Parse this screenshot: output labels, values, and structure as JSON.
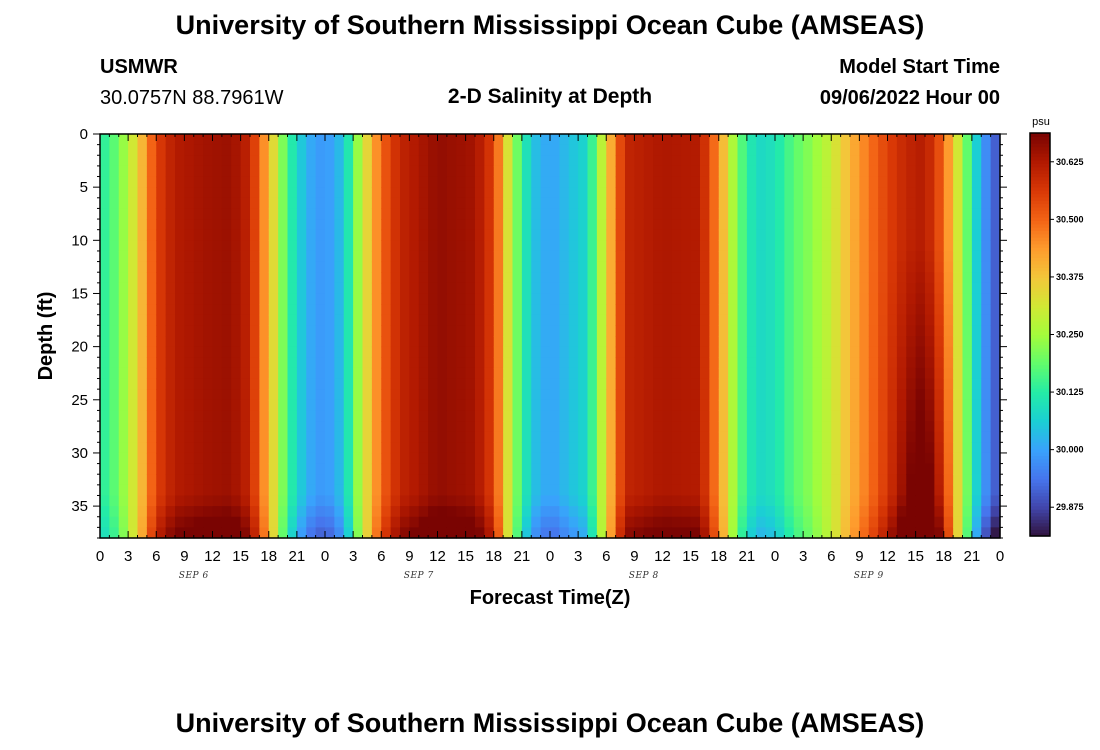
{
  "header": {
    "title_top": "University of Southern Mississippi Ocean Cube (AMSEAS)",
    "station": "USMWR",
    "coords": "30.0757N  88.7961W",
    "subtitle": "2-D Salinity at Depth",
    "start_label": "Model Start Time",
    "start_value": "09/06/2022 Hour 00",
    "title_bottom": "University of Southern Mississippi Ocean Cube (AMSEAS)"
  },
  "colors": {
    "palette": [
      "#30123b",
      "#4145ab",
      "#4675ed",
      "#39a2fc",
      "#1bcfd4",
      "#24eca6",
      "#61fc6c",
      "#a4fc3b",
      "#d1e834",
      "#f3c63a",
      "#fe9b2d",
      "#f36315",
      "#d93806",
      "#b11901",
      "#7a0402"
    ]
  },
  "chart_data": {
    "type": "heatmap",
    "title": "2-D Salinity at Depth",
    "xlabel": "Forecast Time(Z)",
    "ylabel": "Depth (ft)",
    "x_range_hours": [
      0,
      96
    ],
    "x_tick_step_hours": 3,
    "x_tick_labels": [
      "0",
      "3",
      "6",
      "9",
      "12",
      "15",
      "18",
      "21",
      "0",
      "3",
      "6",
      "9",
      "12",
      "15",
      "18",
      "21",
      "0",
      "3",
      "6",
      "9",
      "12",
      "15",
      "18",
      "21",
      "0",
      "3",
      "6",
      "9",
      "12",
      "15",
      "18",
      "21",
      "0"
    ],
    "day_labels": [
      {
        "label": "SEP 6",
        "hour": 10
      },
      {
        "label": "SEP 7",
        "hour": 34
      },
      {
        "label": "SEP 8",
        "hour": 58
      },
      {
        "label": "SEP 9",
        "hour": 82
      }
    ],
    "y_range_ft": [
      0,
      38
    ],
    "y_ticks": [
      "0",
      "5",
      "10",
      "15",
      "20",
      "25",
      "30",
      "35"
    ],
    "colorbar": {
      "unit": "psu",
      "range": [
        29.8125,
        30.6875
      ],
      "ticks": [
        "29.875",
        "30.000",
        "30.125",
        "30.250",
        "30.375",
        "30.500",
        "30.625"
      ]
    },
    "surface_profile": [
      {
        "h": 0,
        "v": 30.12
      },
      {
        "h": 2,
        "v": 30.2
      },
      {
        "h": 4,
        "v": 30.35
      },
      {
        "h": 6,
        "v": 30.55
      },
      {
        "h": 8,
        "v": 30.62
      },
      {
        "h": 11,
        "v": 30.64
      },
      {
        "h": 14,
        "v": 30.65
      },
      {
        "h": 16,
        "v": 30.6
      },
      {
        "h": 18,
        "v": 30.4
      },
      {
        "h": 20,
        "v": 30.15
      },
      {
        "h": 22,
        "v": 30.02
      },
      {
        "h": 24,
        "v": 29.98
      },
      {
        "h": 26,
        "v": 30.05
      },
      {
        "h": 28,
        "v": 30.3
      },
      {
        "h": 30,
        "v": 30.5
      },
      {
        "h": 32,
        "v": 30.6
      },
      {
        "h": 36,
        "v": 30.66
      },
      {
        "h": 40,
        "v": 30.64
      },
      {
        "h": 42,
        "v": 30.55
      },
      {
        "h": 44,
        "v": 30.25
      },
      {
        "h": 46,
        "v": 30.05
      },
      {
        "h": 48,
        "v": 30.0
      },
      {
        "h": 52,
        "v": 30.08
      },
      {
        "h": 54,
        "v": 30.35
      },
      {
        "h": 56,
        "v": 30.6
      },
      {
        "h": 60,
        "v": 30.63
      },
      {
        "h": 64,
        "v": 30.62
      },
      {
        "h": 66,
        "v": 30.45
      },
      {
        "h": 68,
        "v": 30.2
      },
      {
        "h": 70,
        "v": 30.08
      },
      {
        "h": 72,
        "v": 30.1
      },
      {
        "h": 74,
        "v": 30.18
      },
      {
        "h": 76,
        "v": 30.23
      },
      {
        "h": 78,
        "v": 30.3
      },
      {
        "h": 80,
        "v": 30.4
      },
      {
        "h": 82,
        "v": 30.48
      },
      {
        "h": 84,
        "v": 30.55
      },
      {
        "h": 86,
        "v": 30.6
      },
      {
        "h": 88,
        "v": 30.62
      },
      {
        "h": 90,
        "v": 30.5
      },
      {
        "h": 92,
        "v": 30.25
      },
      {
        "h": 94,
        "v": 30.0
      },
      {
        "h": 96,
        "v": 29.88
      }
    ]
  }
}
